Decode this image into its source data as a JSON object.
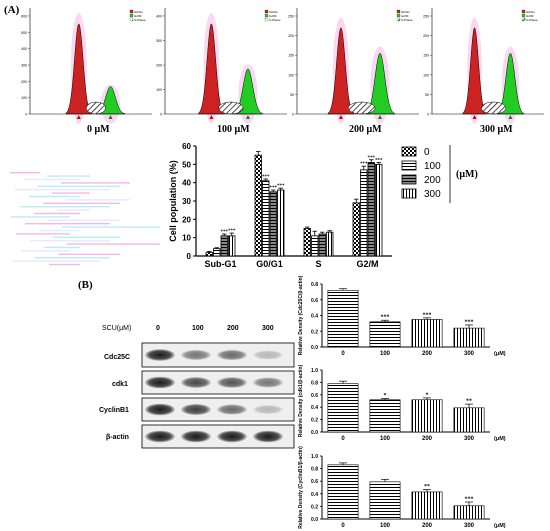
{
  "panel_a": {
    "label": "(A)",
    "histograms": [
      {
        "conc": "0 μM",
        "g1_max": 600,
        "legend": [
          "G0/G1",
          "G2/M",
          "S-Phase"
        ],
        "g1_color": "#cc2222",
        "g2_color": "#22cc22",
        "y_ticks": [
          "0",
          "100",
          "200",
          "300",
          "400",
          "500",
          "600"
        ]
      },
      {
        "conc": "100 μM",
        "g1_max": 420,
        "legend": [
          "G0/G1",
          "G2/M",
          "S-Phase"
        ],
        "g1_color": "#cc2222",
        "g2_color": "#22cc22",
        "y_ticks": [
          "0",
          "100",
          "200",
          "300",
          "400"
        ]
      },
      {
        "conc": "200 μM",
        "g1_max": 250,
        "legend": [
          "G0/G1",
          "G2/M",
          "S-Phase"
        ],
        "g1_color": "#cc2222",
        "g2_color": "#22cc22",
        "y_ticks": [
          "0",
          "50",
          "100",
          "150",
          "200",
          "250"
        ]
      },
      {
        "conc": "300 μM",
        "g1_max": 250,
        "legend": [
          "G0/G1",
          "G2/M",
          "S-Phase"
        ],
        "g1_color": "#cc2222",
        "g2_color": "#22cc22",
        "y_ticks": [
          "0",
          "50",
          "100",
          "150",
          "200",
          "250"
        ]
      }
    ]
  },
  "panel_b": {
    "label": "(B)",
    "blot": {
      "header_label": "SCU(μM)",
      "lanes": [
        "0",
        "100",
        "200",
        "300"
      ],
      "proteins": [
        "Cdc25C",
        "cdk1",
        "CyclinB1",
        "β-actin"
      ]
    }
  },
  "chart_data": [
    {
      "type": "bar",
      "ylabel": "Cell population (%)",
      "categories": [
        "Sub-G1",
        "G0/G1",
        "S",
        "G2/M"
      ],
      "ylim": [
        0,
        60
      ],
      "yticks": [
        "0",
        "10",
        "20",
        "30",
        "40",
        "50",
        "60"
      ],
      "legend_title": "(μM)",
      "series": [
        {
          "name": "0",
          "values": [
            2,
            55,
            15,
            29
          ],
          "errors": [
            0.5,
            2,
            0.8,
            2
          ],
          "sig": [
            "",
            "",
            "",
            ""
          ]
        },
        {
          "name": "100",
          "values": [
            4,
            41,
            11,
            47
          ],
          "errors": [
            0.5,
            1,
            2.5,
            2
          ],
          "sig": [
            "",
            "***",
            "",
            "***"
          ]
        },
        {
          "name": "200",
          "values": [
            11,
            35,
            12,
            51
          ],
          "errors": [
            1,
            1,
            1,
            1.5
          ],
          "sig": [
            "***",
            "***",
            "",
            "***"
          ]
        },
        {
          "name": "300",
          "values": [
            11,
            36,
            13,
            50
          ],
          "errors": [
            1.5,
            1,
            0.8,
            1
          ],
          "sig": [
            "***",
            "***",
            "",
            "***"
          ]
        }
      ]
    },
    {
      "type": "bar",
      "ylabel": "Relative Density (Cdc25C/β-actin)",
      "categories": [
        "0",
        "100",
        "200",
        "300"
      ],
      "unit": "(μM)",
      "ylim": [
        0,
        0.8
      ],
      "yticks": [
        "0.0",
        "0.2",
        "0.4",
        "0.6",
        "0.8"
      ],
      "values": [
        0.72,
        0.32,
        0.35,
        0.24
      ],
      "errors": [
        0.02,
        0.02,
        0.02,
        0.04
      ],
      "sig": [
        "",
        "***",
        "***",
        "***"
      ]
    },
    {
      "type": "bar",
      "ylabel": "Relative Density (cdk1/β-actin)",
      "categories": [
        "0",
        "100",
        "200",
        "300"
      ],
      "unit": "(μM)",
      "ylim": [
        0,
        1.0
      ],
      "yticks": [
        "0.0",
        "0.2",
        "0.4",
        "0.6",
        "0.8",
        "1.0"
      ],
      "values": [
        0.78,
        0.52,
        0.52,
        0.39
      ],
      "errors": [
        0.04,
        0.02,
        0.03,
        0.06
      ],
      "sig": [
        "",
        "*",
        "*",
        "**"
      ]
    },
    {
      "type": "bar",
      "ylabel": "Relative Density (CyclinB1/β-actin)",
      "categories": [
        "0",
        "100",
        "200",
        "300"
      ],
      "unit": "(μM)",
      "ylim": [
        0,
        1.0
      ],
      "yticks": [
        "0.0",
        "0.2",
        "0.4",
        "0.6",
        "0.8",
        "1.0"
      ],
      "values": [
        0.86,
        0.59,
        0.43,
        0.21
      ],
      "errors": [
        0.03,
        0.04,
        0.04,
        0.06
      ],
      "sig": [
        "",
        "",
        "**",
        "***"
      ]
    }
  ]
}
